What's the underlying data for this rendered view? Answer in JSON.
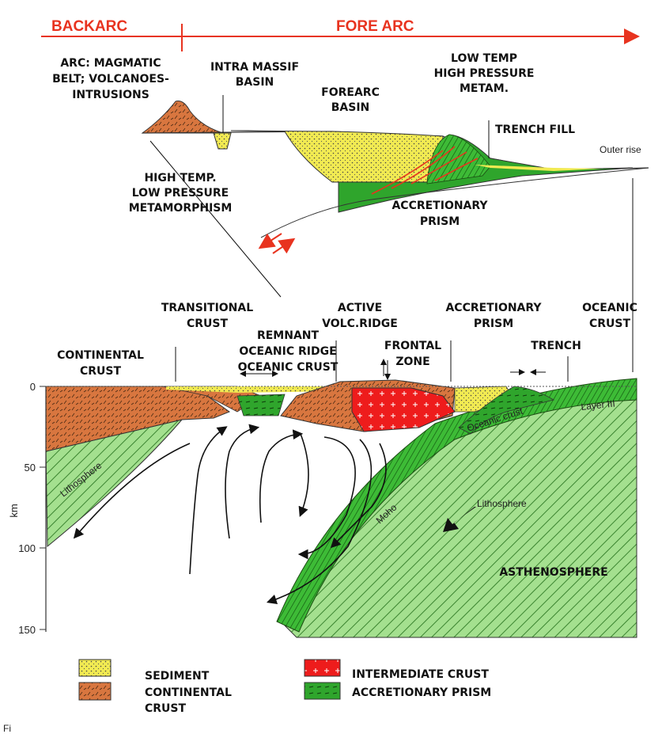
{
  "header": {
    "backarc": "BACKARC",
    "forearc": "FORE ARC"
  },
  "upper_section": {
    "arc": [
      "ARC: MAGMATIC",
      "BELT; VOLCANOES-",
      "INTRUSIONS"
    ],
    "intra_massif": [
      "INTRA MASSIF",
      "BASIN"
    ],
    "forearc_basin": [
      "FOREARC",
      "BASIN"
    ],
    "low_temp": [
      "LOW TEMP",
      "HIGH PRESSURE",
      "METAM."
    ],
    "trench_fill": "TRENCH FILL",
    "outer_rise": "Outer rise",
    "high_temp": [
      "HIGH TEMP.",
      "LOW PRESSURE",
      "METAMORPHISM"
    ],
    "accretionary_prism": [
      "ACCRETIONARY",
      "PRISM"
    ]
  },
  "lower_section": {
    "transitional": [
      "TRANSITIONAL",
      "CRUST"
    ],
    "active_ridge": [
      "ACTIVE",
      "VOLC.RIDGE"
    ],
    "accretionary_prism": [
      "ACCRETIONARY",
      "PRISM"
    ],
    "oceanic_crust_top": [
      "OCEANIC",
      "CRUST"
    ],
    "remnant": [
      "REMNANT",
      "OCEANIC RIDGE",
      "OCEANIC CRUST"
    ],
    "frontal_zone": [
      "FRONTAL",
      "ZONE"
    ],
    "trench": "TRENCH",
    "continental_crust": [
      "CONTINENTAL",
      "CRUST"
    ],
    "lithosphere_left": "Lithosphere",
    "lithosphere_right": "Lithosphere",
    "oceanic_crust_slab": "Oceanic crust",
    "layer_iii": "Layer III",
    "moho": "Moho",
    "asthenosphere": "ASTHENOSPHERE"
  },
  "axis": {
    "unit": "km",
    "ticks": [
      "0",
      "50",
      "100",
      "150"
    ]
  },
  "legend": [
    {
      "label": "SEDIMENT",
      "swatch": "sediment"
    },
    {
      "label": "CONTINENTAL",
      "label2": "CRUST",
      "swatch": "continental"
    },
    {
      "label": "INTERMEDIATE CRUST",
      "swatch": "intermediate"
    },
    {
      "label": "ACCRETIONARY PRISM",
      "swatch": "prism"
    }
  ],
  "colors": {
    "sediment": "#f1ea52",
    "continental": "#d8763f",
    "intermediate": "#ee1c1c",
    "prism": "#2fa52c",
    "slab": "#5fc653",
    "lithosphere": "#a4e08f",
    "header_red": "#e8331f"
  },
  "footer_fragment": "Fi"
}
